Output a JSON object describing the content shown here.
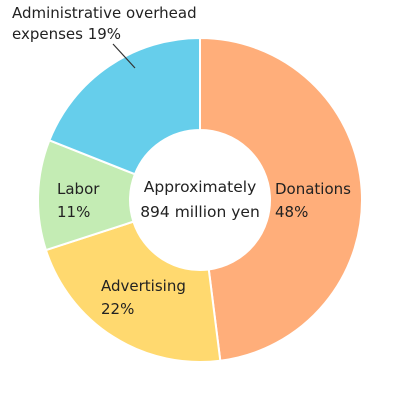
{
  "chart_data": {
    "type": "pie",
    "variant": "donut",
    "center_text": [
      "Approximately",
      "894 million yen"
    ],
    "slices": [
      {
        "label": "Donations",
        "value": 48,
        "value_text": "48%",
        "color": "#FFAE7A"
      },
      {
        "label": "Advertising",
        "value": 22,
        "value_text": "22%",
        "color": "#FFD96F"
      },
      {
        "label": "Labor",
        "value": 11,
        "value_text": "11%",
        "color": "#C4ECB4"
      },
      {
        "label": "Administrative overhead expenses",
        "value": 19,
        "value_text": "19%",
        "color": "#66CEEB"
      }
    ],
    "external_label": {
      "line1": "Administrative overhead",
      "line2": "expenses 19%"
    },
    "legend": "none"
  }
}
